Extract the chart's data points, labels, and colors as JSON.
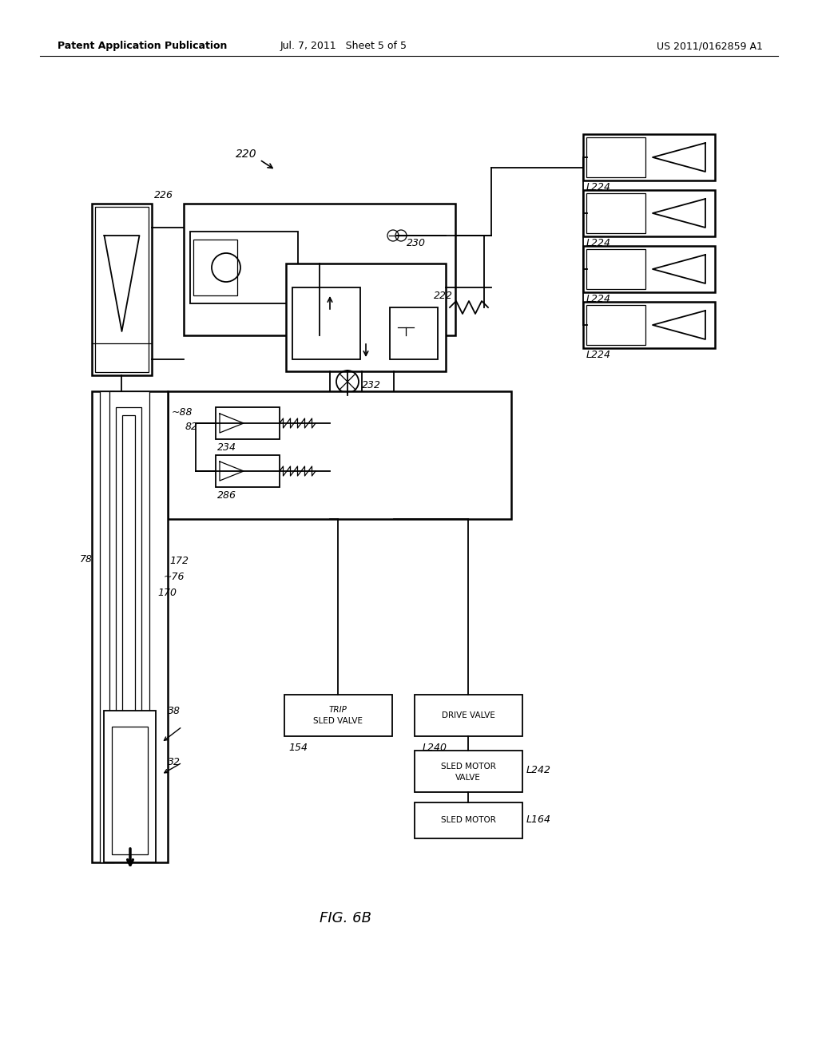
{
  "bg_color": "#ffffff",
  "header_left": "Patent Application Publication",
  "header_mid": "Jul. 7, 2011   Sheet 5 of 5",
  "header_right": "US 2011/0162859 A1",
  "fig_label": "FIG. 6B"
}
